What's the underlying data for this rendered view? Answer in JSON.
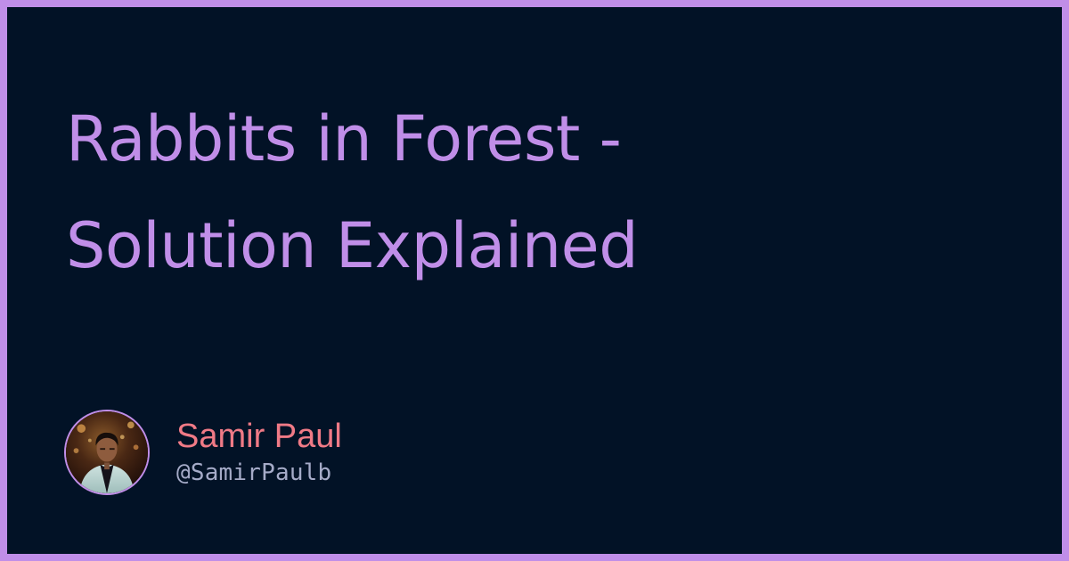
{
  "card": {
    "title": "Rabbits in Forest -\nSolution Explained",
    "author": {
      "name": "Samir Paul",
      "handle": "@SamirPaulb",
      "avatar_icon": "author-portrait"
    }
  },
  "colors": {
    "background": "#021226",
    "frame": "#C08EE8",
    "title": "#C08EE8",
    "author_name": "#F07A86",
    "author_handle": "#A5ABC8"
  }
}
